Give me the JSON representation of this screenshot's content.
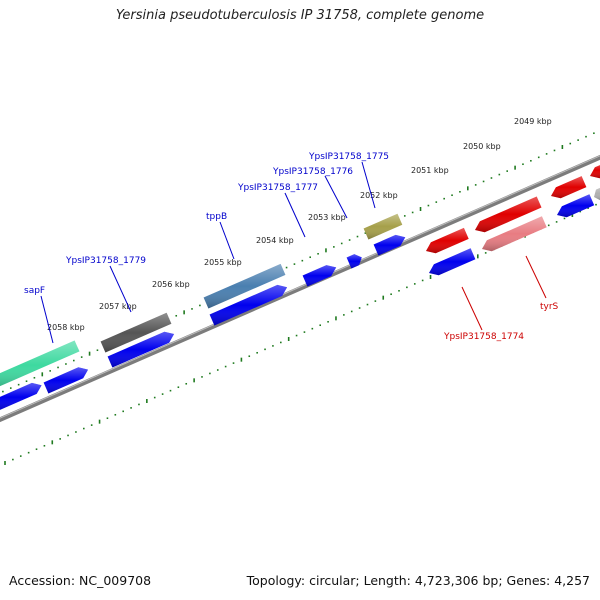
{
  "title": "Yersinia pseudotuberculosis IP 31758, complete genome",
  "footer": {
    "accession": "Accession: NC_009708",
    "topology": "Topology: circular; Length: 4,723,306 bp; Genes: 4,257"
  },
  "colors": {
    "backbone": "#808080",
    "cds_default": "#0000ee",
    "tick": "#1f7a1f",
    "label_left_strand": "#0000cc",
    "label_right_strand": "#cc0000"
  },
  "ruler_labels": [
    {
      "text": "2049 kbp",
      "kb": 2049
    },
    {
      "text": "2050 kbp",
      "kb": 2050
    },
    {
      "text": "2051 kbp",
      "kb": 2051
    },
    {
      "text": "2052 kbp",
      "kb": 2052
    },
    {
      "text": "2053 kbp",
      "kb": 2053
    },
    {
      "text": "2054 kbp",
      "kb": 2054
    },
    {
      "text": "2055 kbp",
      "kb": 2055
    },
    {
      "text": "2056 kbp",
      "kb": 2056
    },
    {
      "text": "2057 kbp",
      "kb": 2057
    },
    {
      "text": "2058 kbp",
      "kb": 2058
    }
  ],
  "features": [
    {
      "name": "sapF",
      "track": "outer",
      "color": "#3ed9a0"
    },
    {
      "name": "YpsIP31758_1779",
      "track": "outer",
      "color": "#555555"
    },
    {
      "name": "tppB",
      "track": "outer",
      "color": "#4a7fb0"
    },
    {
      "name": "YpsIP31758_1777",
      "track": "outer",
      "color": "#0000ee"
    },
    {
      "name": "YpsIP31758_1776",
      "track": "outer",
      "color": "#0000ee"
    },
    {
      "name": "YpsIP31758_1775",
      "track": "outer",
      "color": "#a6a04a"
    },
    {
      "name": "YpsIP31758_1774",
      "track": "inner",
      "color": "#e00000"
    },
    {
      "name": "tyrS",
      "track": "inner",
      "color": "#e87c82"
    }
  ],
  "gene_labels": [
    {
      "text": "sapF",
      "strand": "left"
    },
    {
      "text": "YpsIP31758_1779",
      "strand": "left"
    },
    {
      "text": "tppB",
      "strand": "left"
    },
    {
      "text": "YpsIP31758_1777",
      "strand": "left"
    },
    {
      "text": "YpsIP31758_1776",
      "strand": "left"
    },
    {
      "text": "YpsIP31758_1775",
      "strand": "left"
    },
    {
      "text": "YpsIP31758_1774",
      "strand": "right"
    },
    {
      "text": "tyrS",
      "strand": "right"
    }
  ]
}
